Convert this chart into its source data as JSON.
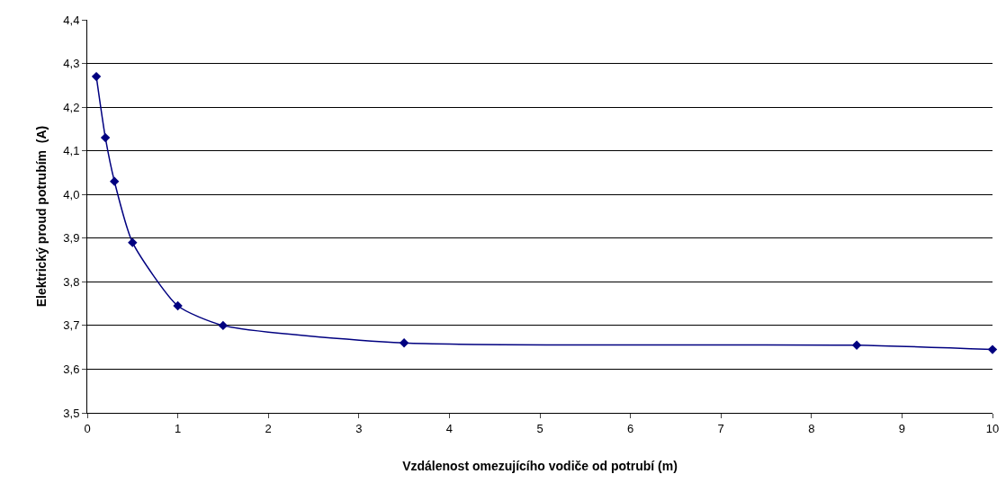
{
  "chart_data": {
    "type": "line",
    "xlabel": "Vzdálenost omezujícího vodiče od potrubí (m)",
    "ylabel": "Elektrický proud potrubím  (A)",
    "x": [
      0.1,
      0.2,
      0.3,
      0.5,
      1,
      1.5,
      3.5,
      8.5,
      10
    ],
    "series": [
      {
        "color": "#000080",
        "values": [
          4.27,
          4.13,
          4.03,
          3.89,
          3.745,
          3.7,
          3.66,
          3.655,
          3.645
        ]
      }
    ],
    "xlim": [
      0,
      10
    ],
    "xticks": [
      0,
      1,
      2,
      3,
      4,
      5,
      6,
      7,
      8,
      9,
      10
    ],
    "ylim": [
      3.5,
      4.4
    ],
    "yticks": [
      {
        "value": 3.5,
        "label": "3,5"
      },
      {
        "value": 3.6,
        "label": "3,6"
      },
      {
        "value": 3.7,
        "label": "3,7"
      },
      {
        "value": 3.8,
        "label": "3,8"
      },
      {
        "value": 3.9,
        "label": "3,9"
      },
      {
        "value": 4.0,
        "label": "4,0"
      },
      {
        "value": 4.1,
        "label": "4,1"
      },
      {
        "value": 4.2,
        "label": "4,2"
      },
      {
        "value": 4.3,
        "label": "4,3"
      },
      {
        "value": 4.4,
        "label": "4,4"
      }
    ],
    "grid": "y",
    "legend": false,
    "marker": "diamond",
    "line_style": "solid"
  }
}
